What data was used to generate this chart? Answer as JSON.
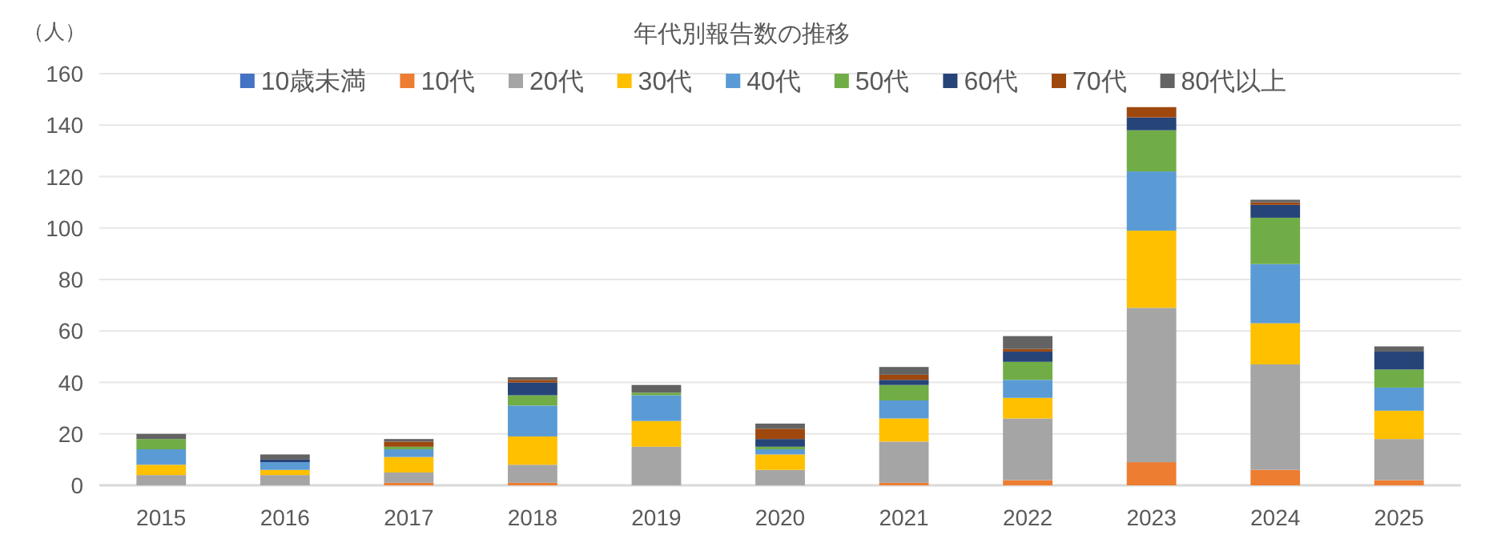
{
  "chart_data": {
    "type": "bar",
    "stacked": true,
    "title": "年代別報告数の推移",
    "ylabel": "（人）",
    "categories": [
      "2015",
      "2016",
      "2017",
      "2018",
      "2019",
      "2020",
      "2021",
      "2022",
      "2023",
      "2024",
      "2025"
    ],
    "ylim": [
      0,
      160
    ],
    "yticks": [
      0,
      20,
      40,
      60,
      80,
      100,
      120,
      140,
      160
    ],
    "grid": "y",
    "legend": "top",
    "series": [
      {
        "name": "10歳未満",
        "color": "#4472c4",
        "values": [
          0,
          0,
          0,
          0,
          0,
          0,
          0,
          0,
          0,
          0,
          0
        ]
      },
      {
        "name": "10代",
        "color": "#ed7d31",
        "values": [
          0,
          0,
          1,
          1,
          0,
          0,
          1,
          2,
          9,
          6,
          2
        ]
      },
      {
        "name": "20代",
        "color": "#a5a5a5",
        "values": [
          4,
          4,
          4,
          7,
          15,
          6,
          16,
          24,
          60,
          41,
          16
        ]
      },
      {
        "name": "30代",
        "color": "#ffc000",
        "values": [
          4,
          2,
          6,
          11,
          10,
          6,
          9,
          8,
          30,
          16,
          11
        ]
      },
      {
        "name": "40代",
        "color": "#5b9bd5",
        "values": [
          6,
          3,
          3,
          12,
          10,
          2,
          7,
          7,
          23,
          23,
          9
        ]
      },
      {
        "name": "50代",
        "color": "#70ad47",
        "values": [
          4,
          0,
          1,
          4,
          1,
          1,
          6,
          7,
          16,
          18,
          7
        ]
      },
      {
        "name": "60代",
        "color": "#264478",
        "values": [
          0,
          1,
          0,
          5,
          0,
          3,
          2,
          4,
          5,
          5,
          7
        ]
      },
      {
        "name": "70代",
        "color": "#9e480e",
        "values": [
          0,
          0,
          2,
          1,
          0,
          4,
          2,
          1,
          4,
          1,
          0
        ]
      },
      {
        "name": "80代以上",
        "color": "#636363",
        "values": [
          2,
          2,
          1,
          1,
          3,
          2,
          3,
          5,
          0,
          1,
          2
        ]
      }
    ]
  }
}
